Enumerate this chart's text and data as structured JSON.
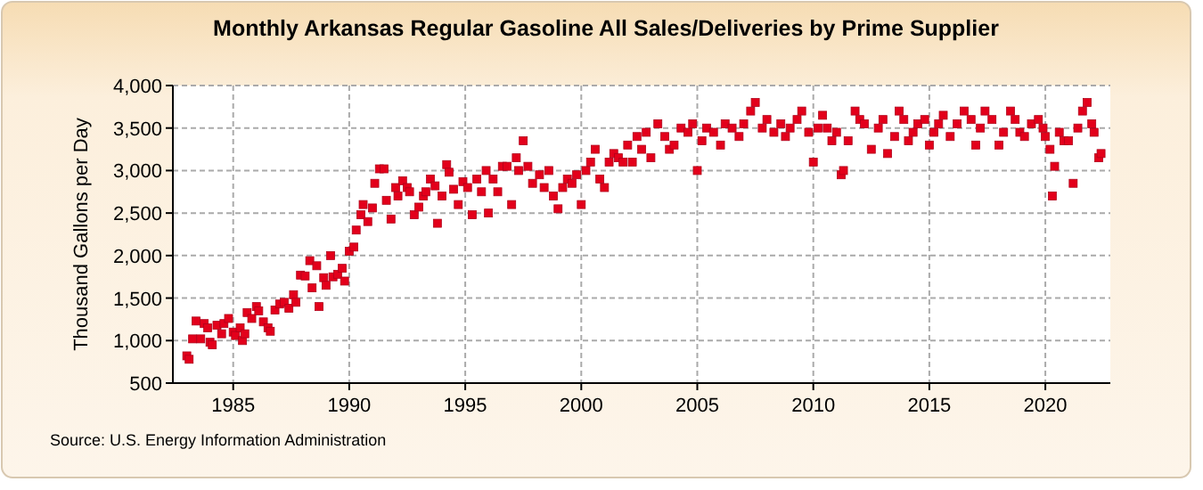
{
  "chart_data": {
    "type": "scatter",
    "title": "Monthly Arkansas Regular Gasoline All Sales/Deliveries by Prime Supplier",
    "ylabel": "Thousand Gallons per Day",
    "annotations": [
      "Source: U.S. Energy Information Administration"
    ],
    "xlim": [
      1982.4,
      2022.8
    ],
    "xticks": [
      1985,
      1990,
      1995,
      2000,
      2005,
      2010,
      2015,
      2020
    ],
    "ylim": [
      500,
      4000
    ],
    "yticks": [
      {
        "value": 500,
        "label": "500"
      },
      {
        "value": 1000,
        "label": "1,000"
      },
      {
        "value": 1500,
        "label": "1,500"
      },
      {
        "value": 2000,
        "label": "2,000"
      },
      {
        "value": 2500,
        "label": "2,500"
      },
      {
        "value": 3000,
        "label": "3,000"
      },
      {
        "value": 3500,
        "label": "3,500"
      },
      {
        "value": 4000,
        "label": "4,000"
      }
    ],
    "grid": true,
    "marker": "square",
    "series": [
      {
        "color": "#e3001b",
        "x": [
          1983.0,
          1983.1,
          1983.25,
          1983.4,
          1983.6,
          1983.75,
          1983.9,
          1984.0,
          1984.1,
          1984.3,
          1984.5,
          1984.6,
          1984.8,
          1985.0,
          1985.1,
          1985.3,
          1985.4,
          1985.5,
          1985.6,
          1985.8,
          1986.0,
          1986.1,
          1986.3,
          1986.5,
          1986.6,
          1986.8,
          1987.0,
          1987.2,
          1987.4,
          1987.6,
          1987.7,
          1987.9,
          1988.1,
          1988.3,
          1988.4,
          1988.6,
          1988.7,
          1988.9,
          1989.0,
          1989.2,
          1989.3,
          1989.5,
          1989.7,
          1989.8,
          1990.0,
          1990.2,
          1990.3,
          1990.5,
          1990.6,
          1990.8,
          1991.0,
          1991.1,
          1991.3,
          1991.5,
          1991.6,
          1991.8,
          1992.0,
          1992.1,
          1992.3,
          1992.5,
          1992.6,
          1992.8,
          1993.0,
          1993.2,
          1993.3,
          1993.5,
          1993.7,
          1993.8,
          1994.0,
          1994.2,
          1994.3,
          1994.5,
          1994.7,
          1994.9,
          1995.1,
          1995.3,
          1995.5,
          1995.7,
          1995.9,
          1996.0,
          1996.2,
          1996.4,
          1996.6,
          1996.8,
          1997.0,
          1997.2,
          1997.3,
          1997.5,
          1997.7,
          1997.9,
          1998.2,
          1998.4,
          1998.6,
          1998.8,
          1999.0,
          1999.2,
          1999.4,
          1999.6,
          1999.8,
          2000.0,
          2000.2,
          2000.4,
          2000.6,
          2000.8,
          2001.0,
          2001.2,
          2001.4,
          2001.6,
          2001.8,
          2002.0,
          2002.2,
          2002.4,
          2002.6,
          2002.8,
          2003.0,
          2003.3,
          2003.6,
          2003.8,
          2004.0,
          2004.3,
          2004.6,
          2004.8,
          2005.0,
          2005.2,
          2005.4,
          2005.7,
          2006.0,
          2006.2,
          2006.5,
          2006.8,
          2007.0,
          2007.3,
          2007.5,
          2007.8,
          2008.0,
          2008.3,
          2008.6,
          2008.8,
          2009.0,
          2009.3,
          2009.5,
          2009.8,
          2010.0,
          2010.2,
          2010.4,
          2010.6,
          2010.8,
          2011.0,
          2011.2,
          2011.3,
          2011.5,
          2011.8,
          2012.0,
          2012.2,
          2012.5,
          2012.8,
          2013.0,
          2013.2,
          2013.5,
          2013.7,
          2013.9,
          2014.1,
          2014.3,
          2014.5,
          2014.8,
          2015.0,
          2015.2,
          2015.4,
          2015.6,
          2015.9,
          2016.2,
          2016.5,
          2016.8,
          2017.0,
          2017.2,
          2017.4,
          2017.7,
          2018.0,
          2018.2,
          2018.5,
          2018.7,
          2018.9,
          2019.1,
          2019.4,
          2019.7,
          2019.9,
          2020.0,
          2020.2,
          2020.3,
          2020.4,
          2020.6,
          2020.8,
          2021.0,
          2021.2,
          2021.4,
          2021.6,
          2021.8,
          2022.0,
          2022.1,
          2022.3,
          2022.4
        ],
        "values": [
          820,
          780,
          1020,
          1230,
          1020,
          1200,
          1150,
          980,
          950,
          1180,
          1080,
          1200,
          1260,
          1100,
          1060,
          1150,
          1000,
          1080,
          1330,
          1260,
          1400,
          1350,
          1220,
          1150,
          1110,
          1360,
          1430,
          1450,
          1380,
          1540,
          1450,
          1770,
          1760,
          1940,
          1620,
          1880,
          1400,
          1740,
          1650,
          2000,
          1750,
          1780,
          1850,
          1700,
          2050,
          2100,
          2300,
          2480,
          2600,
          2400,
          2560,
          2850,
          3020,
          3020,
          2650,
          2430,
          2800,
          2700,
          2880,
          2800,
          2750,
          2480,
          2570,
          2700,
          2750,
          2900,
          2820,
          2380,
          2700,
          3070,
          2980,
          2780,
          2600,
          2870,
          2800,
          2480,
          2900,
          2750,
          3000,
          2500,
          2900,
          2750,
          3050,
          3050,
          2600,
          3150,
          3000,
          3350,
          3050,
          2850,
          2950,
          2800,
          3000,
          2700,
          2550,
          2800,
          2900,
          2850,
          2950,
          2600,
          3000,
          3100,
          3250,
          2900,
          2800,
          3100,
          3200,
          3150,
          3100,
          3300,
          3100,
          3400,
          3250,
          3450,
          3150,
          3550,
          3400,
          3250,
          3300,
          3500,
          3450,
          3550,
          3000,
          3350,
          3500,
          3450,
          3300,
          3550,
          3500,
          3400,
          3550,
          3700,
          3800,
          3500,
          3600,
          3450,
          3550,
          3400,
          3500,
          3600,
          3700,
          3450,
          3100,
          3500,
          3650,
          3500,
          3350,
          3450,
          2950,
          3000,
          3350,
          3700,
          3600,
          3550,
          3250,
          3500,
          3600,
          3200,
          3400,
          3700,
          3600,
          3350,
          3450,
          3550,
          3600,
          3300,
          3450,
          3550,
          3650,
          3400,
          3550,
          3700,
          3600,
          3300,
          3500,
          3700,
          3600,
          3300,
          3450,
          3700,
          3600,
          3450,
          3400,
          3550,
          3600,
          3500,
          3400,
          3250,
          2700,
          3050,
          3450,
          3350,
          3350,
          2850,
          3500,
          3700,
          3800,
          3550,
          3450,
          3150,
          3200
        ]
      }
    ]
  }
}
